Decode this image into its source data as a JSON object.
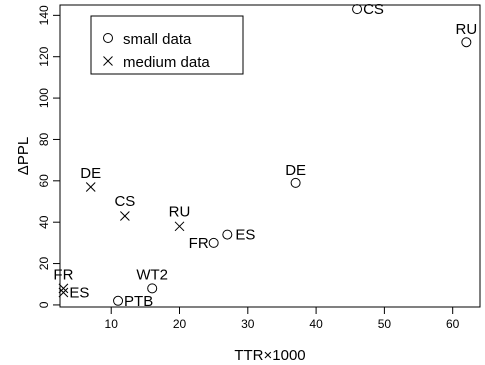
{
  "chart_data": {
    "type": "scatter",
    "xlabel": "TTR×1000",
    "ylabel": "ΔPPL",
    "xlim": [
      2.5,
      64
    ],
    "ylim": [
      -1,
      145
    ],
    "x_ticks": [
      10,
      20,
      30,
      40,
      50,
      60
    ],
    "y_ticks": [
      0,
      20,
      40,
      60,
      80,
      100,
      120,
      140
    ],
    "grid": false,
    "legend_position": "top-left",
    "series": [
      {
        "name": "small data",
        "marker": "circle",
        "points": [
          {
            "label": "CS",
            "x": 46,
            "y": 143
          },
          {
            "label": "RU",
            "x": 62,
            "y": 127
          },
          {
            "label": "DE",
            "x": 37,
            "y": 59
          },
          {
            "label": "ES",
            "x": 27,
            "y": 34
          },
          {
            "label": "FR",
            "x": 25,
            "y": 30
          },
          {
            "label": "WT2",
            "x": 16,
            "y": 8
          },
          {
            "label": "PTB",
            "x": 11,
            "y": 2
          }
        ]
      },
      {
        "name": "medium data",
        "marker": "cross",
        "points": [
          {
            "label": "DE",
            "x": 7,
            "y": 57
          },
          {
            "label": "CS",
            "x": 12,
            "y": 43
          },
          {
            "label": "RU",
            "x": 20,
            "y": 38
          },
          {
            "label": "FR",
            "x": 3,
            "y": 8
          },
          {
            "label": "ES",
            "x": 3,
            "y": 6
          }
        ]
      }
    ]
  }
}
